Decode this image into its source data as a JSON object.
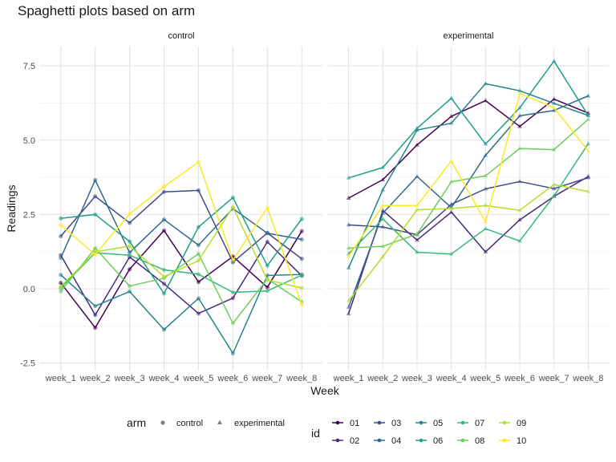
{
  "chart_data": {
    "type": "line",
    "title": "Spaghetti plots based on arm",
    "xlabel": "Week",
    "ylabel": "Readings",
    "categories": [
      "week_1",
      "week_2",
      "week_3",
      "week_4",
      "week_5",
      "week_6",
      "week_7",
      "week_8"
    ],
    "ylim": [
      -2.75,
      8.15
    ],
    "yticks": [
      -2.5,
      0.0,
      2.5,
      5.0,
      7.5
    ],
    "ytick_labels": [
      "-2.5",
      "0.0",
      "2.5",
      "5.0",
      "7.5"
    ],
    "grid": true,
    "facets": [
      {
        "arm": "control",
        "marker": "circle",
        "series": [
          {
            "id": "01",
            "values": [
              0.2,
              -1.31,
              0.66,
              1.96,
              0.23,
              1.09,
              0.05,
              1.94
            ]
          },
          {
            "id": "02",
            "values": [
              1.13,
              -0.88,
              1.07,
              0.17,
              -0.83,
              -0.31,
              1.58,
              0.44
            ]
          },
          {
            "id": "03",
            "values": [
              1.77,
              3.11,
              2.22,
              3.26,
              3.31,
              0.89,
              1.88,
              1.01
            ]
          },
          {
            "id": "04",
            "values": [
              1.04,
              3.66,
              1.22,
              2.33,
              1.47,
              2.7,
              1.87,
              1.66
            ]
          },
          {
            "id": "05",
            "values": [
              0.47,
              -0.58,
              -0.09,
              -1.37,
              -0.32,
              -2.17,
              0.45,
              0.48
            ]
          },
          {
            "id": "06",
            "values": [
              2.37,
              2.5,
              1.59,
              -0.16,
              2.08,
              3.07,
              0.78,
              2.35
            ]
          },
          {
            "id": "07",
            "values": [
              0.03,
              1.21,
              1.13,
              0.64,
              0.49,
              -0.12,
              -0.07,
              0.46
            ]
          },
          {
            "id": "08",
            "values": [
              -0.09,
              1.37,
              0.09,
              0.36,
              1.18,
              -1.16,
              0.33,
              -0.44
            ]
          },
          {
            "id": "09",
            "values": [
              0.08,
              1.24,
              1.44,
              0.41,
              0.95,
              2.75,
              0.3,
              0.03
            ]
          },
          {
            "id": "10",
            "values": [
              2.14,
              1.15,
              2.52,
              3.44,
              4.26,
              0.97,
              2.73,
              -0.53
            ]
          }
        ]
      },
      {
        "arm": "experimental",
        "marker": "triangle",
        "series": [
          {
            "id": "01",
            "values": [
              3.05,
              3.67,
              4.84,
              5.8,
              6.33,
              5.46,
              6.38,
              5.91
            ]
          },
          {
            "id": "02",
            "values": [
              -0.84,
              2.63,
              1.64,
              2.58,
              1.24,
              2.32,
              3.11,
              3.78
            ]
          },
          {
            "id": "03",
            "values": [
              2.15,
              2.08,
              1.82,
              2.84,
              3.36,
              3.61,
              3.37,
              3.74
            ]
          },
          {
            "id": "04",
            "values": [
              -0.62,
              2.54,
              3.78,
              2.73,
              4.49,
              5.82,
              6.0,
              6.49
            ]
          },
          {
            "id": "05",
            "values": [
              0.7,
              3.33,
              5.34,
              5.57,
              6.9,
              6.66,
              6.24,
              5.83
            ]
          },
          {
            "id": "06",
            "values": [
              3.73,
              4.08,
              5.4,
              6.41,
              4.87,
              6.09,
              7.66,
              5.83
            ]
          },
          {
            "id": "07",
            "values": [
              1.18,
              2.35,
              1.23,
              1.17,
              2.02,
              1.61,
              3.13,
              4.88
            ]
          },
          {
            "id": "08",
            "values": [
              1.37,
              1.43,
              1.84,
              3.6,
              3.8,
              4.72,
              4.68,
              5.7
            ]
          },
          {
            "id": "09",
            "values": [
              -0.4,
              1.08,
              2.66,
              2.7,
              2.8,
              2.64,
              3.51,
              3.27
            ]
          },
          {
            "id": "10",
            "values": [
              1.09,
              2.8,
              2.8,
              4.3,
              2.25,
              6.57,
              6.09,
              4.64
            ]
          }
        ]
      }
    ],
    "colors": {
      "01": "#440154",
      "02": "#482878",
      "03": "#3E4A89",
      "04": "#31688E",
      "05": "#26828E",
      "06": "#1F9E89",
      "07": "#35B779",
      "08": "#6DCD59",
      "09": "#B4DE2C",
      "10": "#FDE725"
    },
    "legend": {
      "arm_title": "arm",
      "arm_items": [
        {
          "label": "control",
          "shape": "circle"
        },
        {
          "label": "experimental",
          "shape": "triangle"
        }
      ],
      "id_title": "id",
      "id_items": [
        "01",
        "02",
        "03",
        "04",
        "05",
        "06",
        "07",
        "08",
        "09",
        "10"
      ]
    }
  }
}
